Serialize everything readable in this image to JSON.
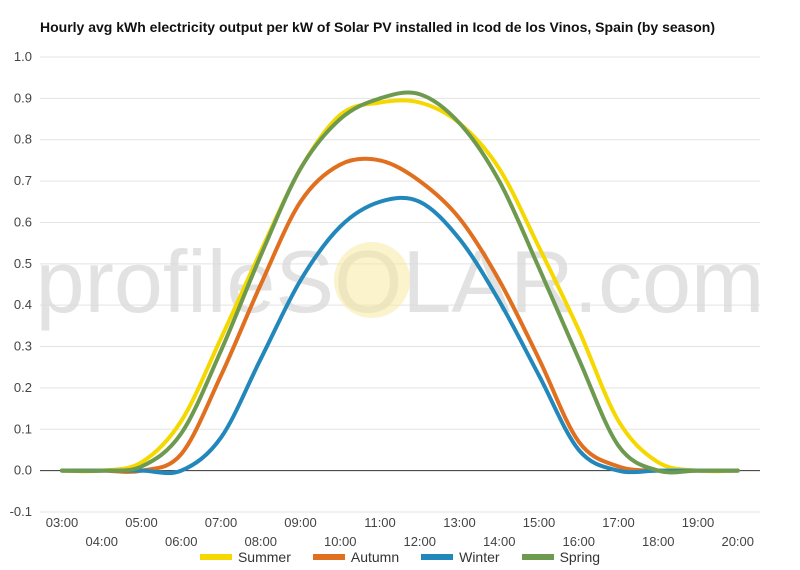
{
  "chart_data": {
    "type": "line",
    "title": "Hourly avg kWh electricity output per kW of Solar PV installed in Icod de los Vinos, Spain (by season)",
    "xlabel": "",
    "ylabel": "",
    "ylim": [
      -0.1,
      1.0
    ],
    "y_ticks": [
      "-0.1",
      "0.0",
      "0.1",
      "0.2",
      "0.3",
      "0.4",
      "0.5",
      "0.6",
      "0.7",
      "0.8",
      "0.9",
      "1.0"
    ],
    "categories": [
      "03:00",
      "04:00",
      "05:00",
      "06:00",
      "07:00",
      "08:00",
      "09:00",
      "10:00",
      "11:00",
      "12:00",
      "13:00",
      "14:00",
      "15:00",
      "16:00",
      "17:00",
      "18:00",
      "19:00",
      "20:00"
    ],
    "grid": true,
    "legend_position": "bottom",
    "watermark": "profileSOLAR.com",
    "series": [
      {
        "name": "Summer",
        "color": "#f5d800",
        "values": [
          0.0,
          0.0,
          0.02,
          0.12,
          0.32,
          0.53,
          0.73,
          0.86,
          0.89,
          0.89,
          0.84,
          0.73,
          0.54,
          0.34,
          0.12,
          0.02,
          0.0,
          0.0
        ]
      },
      {
        "name": "Autumn",
        "color": "#e07020",
        "values": [
          0.0,
          0.0,
          0.0,
          0.04,
          0.23,
          0.45,
          0.65,
          0.74,
          0.75,
          0.7,
          0.61,
          0.46,
          0.27,
          0.07,
          0.01,
          0.0,
          0.0,
          0.0
        ]
      },
      {
        "name": "Winter",
        "color": "#2288bb",
        "values": [
          0.0,
          0.0,
          0.0,
          0.0,
          0.08,
          0.27,
          0.46,
          0.59,
          0.65,
          0.65,
          0.56,
          0.41,
          0.23,
          0.05,
          0.0,
          0.0,
          0.0,
          0.0
        ]
      },
      {
        "name": "Spring",
        "color": "#6e9a50",
        "values": [
          0.0,
          0.0,
          0.01,
          0.09,
          0.29,
          0.52,
          0.73,
          0.85,
          0.9,
          0.91,
          0.84,
          0.7,
          0.49,
          0.27,
          0.06,
          0.0,
          0.0,
          0.0
        ]
      }
    ]
  }
}
